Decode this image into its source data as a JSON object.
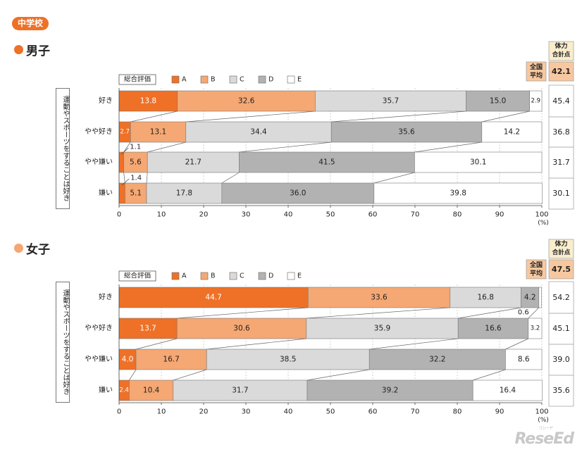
{
  "header": {
    "school_label": "中学校"
  },
  "colors": {
    "A": "#ee7127",
    "B": "#f5a873",
    "C": "#dadada",
    "D": "#b2b2b2",
    "E": "#ffffff",
    "accent": "#ee7127",
    "boys_dot": "#ee7127",
    "girls_dot": "#f4a673",
    "side_header_bg": "#f9edcc",
    "side_highlight_bg": "#f7c8a0"
  },
  "legend": {
    "title": "総合評価",
    "items": [
      "A",
      "B",
      "C",
      "D",
      "E"
    ]
  },
  "axis": {
    "ticks": [
      0,
      10,
      20,
      30,
      40,
      50,
      60,
      70,
      80,
      90,
      100
    ],
    "unit": "(%)"
  },
  "side": {
    "header_line1": "体力",
    "header_line2": "合計点",
    "national_line1": "全国",
    "national_line2": "平均"
  },
  "chart_data": [
    {
      "type": "bar",
      "orientation": "horizontal-stacked",
      "title": "男子",
      "ylabel": "運動やスポーツをすることは好き",
      "xlabel": "(%)",
      "xlim": [
        0,
        100
      ],
      "legend_title": "総合評価",
      "categories": [
        "好き",
        "やや好き",
        "やや嫌い",
        "嫌い"
      ],
      "series": [
        {
          "name": "A",
          "values": [
            13.8,
            2.7,
            1.1,
            1.4
          ]
        },
        {
          "name": "B",
          "values": [
            32.6,
            13.1,
            5.6,
            5.1
          ]
        },
        {
          "name": "C",
          "values": [
            35.7,
            34.4,
            21.7,
            17.8
          ]
        },
        {
          "name": "D",
          "values": [
            15.0,
            35.6,
            41.5,
            36.0
          ]
        },
        {
          "name": "E",
          "values": [
            2.9,
            14.2,
            30.1,
            39.8
          ]
        }
      ],
      "total_score_label": "体力合計点",
      "national_average": 42.1,
      "total_scores": [
        45.4,
        36.8,
        31.7,
        30.1
      ]
    },
    {
      "type": "bar",
      "orientation": "horizontal-stacked",
      "title": "女子",
      "ylabel": "運動やスポーツをすることは好き",
      "xlabel": "(%)",
      "xlim": [
        0,
        100
      ],
      "legend_title": "総合評価",
      "categories": [
        "好き",
        "やや好き",
        "やや嫌い",
        "嫌い"
      ],
      "series": [
        {
          "name": "A",
          "values": [
            44.7,
            13.7,
            4.0,
            2.4
          ]
        },
        {
          "name": "B",
          "values": [
            33.6,
            30.6,
            16.7,
            10.4
          ]
        },
        {
          "name": "C",
          "values": [
            16.8,
            35.9,
            38.5,
            31.7
          ]
        },
        {
          "name": "D",
          "values": [
            4.2,
            16.6,
            32.2,
            39.2
          ]
        },
        {
          "name": "E",
          "values": [
            0.6,
            3.2,
            8.6,
            16.4
          ]
        }
      ],
      "total_score_label": "体力合計点",
      "national_average": 47.5,
      "total_scores": [
        54.2,
        45.1,
        39.0,
        35.6
      ]
    }
  ],
  "watermark": {
    "text": "ReseEd",
    "sub": "リシード"
  }
}
